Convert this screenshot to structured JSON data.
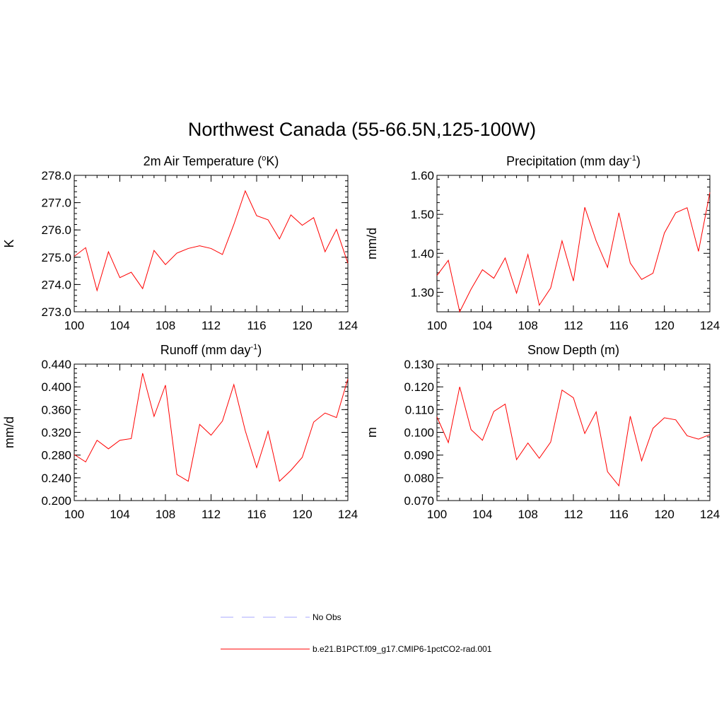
{
  "main_title": "Northwest Canada (55-66.5N,125-100W)",
  "colors": {
    "series": "#ff0000",
    "obs": "#a8a8ff",
    "axis": "#000000"
  },
  "legend": [
    {
      "label": "No Obs",
      "style": "dashed",
      "color": "#a8a8ff"
    },
    {
      "label": "b.e21.B1PCT.f09_g17.CMIP6-1pctCO2-rad.001",
      "style": "solid",
      "color": "#ff0000"
    }
  ],
  "chart_data": [
    {
      "type": "line",
      "title": "2m Air Temperature (",
      "title_sup": "o",
      "title_after": "K)",
      "ylabel": "K",
      "xlim": [
        100,
        124
      ],
      "ylim": [
        273.0,
        278.0
      ],
      "x_ticks": [
        100,
        104,
        108,
        112,
        116,
        120,
        124
      ],
      "x_tick_labels": [
        "100",
        "104",
        "108",
        "112",
        "116",
        "120",
        "124"
      ],
      "y_ticks": [
        273.0,
        274.0,
        275.0,
        276.0,
        277.0,
        278.0
      ],
      "y_tick_labels": [
        "273.0",
        "274.0",
        "275.0",
        "276.0",
        "277.0",
        "278.0"
      ],
      "x_minor_step": 1,
      "y_minor_step": 0.2,
      "x": [
        100,
        101,
        102,
        103,
        104,
        105,
        106,
        107,
        108,
        109,
        110,
        111,
        112,
        113,
        114,
        115,
        116,
        117,
        118,
        119,
        120,
        121,
        122,
        123,
        124
      ],
      "values": [
        275.03,
        275.35,
        273.78,
        275.2,
        274.25,
        274.45,
        273.85,
        275.25,
        274.73,
        275.15,
        275.32,
        275.42,
        275.32,
        275.1,
        276.2,
        277.43,
        276.52,
        276.37,
        275.67,
        276.55,
        276.17,
        276.45,
        275.2,
        276.02,
        274.78
      ]
    },
    {
      "type": "line",
      "title": "Precipitation (mm day",
      "title_sup": "-1",
      "title_after": ")",
      "ylabel": "mm/d",
      "xlim": [
        100,
        124
      ],
      "ylim": [
        1.25,
        1.6
      ],
      "x_ticks": [
        100,
        104,
        108,
        112,
        116,
        120,
        124
      ],
      "x_tick_labels": [
        "100",
        "104",
        "108",
        "112",
        "116",
        "120",
        "124"
      ],
      "y_ticks": [
        1.3,
        1.4,
        1.5,
        1.6
      ],
      "y_tick_labels": [
        "1.30",
        "1.40",
        "1.50",
        "1.60"
      ],
      "x_minor_step": 1,
      "y_minor_step": 0.02,
      "x": [
        100,
        101,
        102,
        103,
        104,
        105,
        106,
        107,
        108,
        109,
        110,
        111,
        112,
        113,
        114,
        115,
        116,
        117,
        118,
        119,
        120,
        121,
        122,
        123,
        124
      ],
      "values": [
        1.343,
        1.382,
        1.25,
        1.308,
        1.358,
        1.336,
        1.388,
        1.298,
        1.397,
        1.267,
        1.311,
        1.432,
        1.329,
        1.518,
        1.432,
        1.364,
        1.504,
        1.375,
        1.333,
        1.349,
        1.452,
        1.504,
        1.517,
        1.405,
        1.556
      ]
    },
    {
      "type": "line",
      "title": "Runoff (mm day",
      "title_sup": "-1",
      "title_after": ")",
      "ylabel": "mm/d",
      "xlim": [
        100,
        124
      ],
      "ylim": [
        0.2,
        0.44
      ],
      "x_ticks": [
        100,
        104,
        108,
        112,
        116,
        120,
        124
      ],
      "x_tick_labels": [
        "100",
        "104",
        "108",
        "112",
        "116",
        "120",
        "124"
      ],
      "y_ticks": [
        0.2,
        0.24,
        0.28,
        0.32,
        0.36,
        0.4,
        0.44
      ],
      "y_tick_labels": [
        "0.200",
        "0.240",
        "0.280",
        "0.320",
        "0.360",
        "0.400",
        "0.440"
      ],
      "x_minor_step": 1,
      "y_minor_step": 0.008,
      "x": [
        100,
        101,
        102,
        103,
        104,
        105,
        106,
        107,
        108,
        109,
        110,
        111,
        112,
        113,
        114,
        115,
        116,
        117,
        118,
        119,
        120,
        121,
        122,
        123,
        124
      ],
      "values": [
        0.281,
        0.268,
        0.306,
        0.291,
        0.306,
        0.309,
        0.424,
        0.348,
        0.403,
        0.246,
        0.234,
        0.334,
        0.315,
        0.34,
        0.404,
        0.323,
        0.258,
        0.322,
        0.234,
        0.253,
        0.276,
        0.338,
        0.354,
        0.346,
        0.414
      ]
    },
    {
      "type": "line",
      "title": "Snow Depth (m)",
      "title_sup": "",
      "title_after": "",
      "ylabel": "m",
      "xlim": [
        100,
        124
      ],
      "ylim": [
        0.07,
        0.13
      ],
      "x_ticks": [
        100,
        104,
        108,
        112,
        116,
        120,
        124
      ],
      "x_tick_labels": [
        "100",
        "104",
        "108",
        "112",
        "116",
        "120",
        "124"
      ],
      "y_ticks": [
        0.07,
        0.08,
        0.09,
        0.1,
        0.11,
        0.12,
        0.13
      ],
      "y_tick_labels": [
        "0.070",
        "0.080",
        "0.090",
        "0.100",
        "0.110",
        "0.120",
        "0.130"
      ],
      "x_minor_step": 1,
      "y_minor_step": 0.002,
      "x": [
        100,
        101,
        102,
        103,
        104,
        105,
        106,
        107,
        108,
        109,
        110,
        111,
        112,
        113,
        114,
        115,
        116,
        117,
        118,
        119,
        120,
        121,
        122,
        123,
        124
      ],
      "values": [
        0.1068,
        0.0955,
        0.12,
        0.1012,
        0.0965,
        0.1092,
        0.1124,
        0.088,
        0.0953,
        0.0886,
        0.0957,
        0.1186,
        0.1152,
        0.0995,
        0.109,
        0.0827,
        0.0765,
        0.1071,
        0.0875,
        0.1018,
        0.1064,
        0.1055,
        0.0985,
        0.097,
        0.099
      ]
    }
  ]
}
